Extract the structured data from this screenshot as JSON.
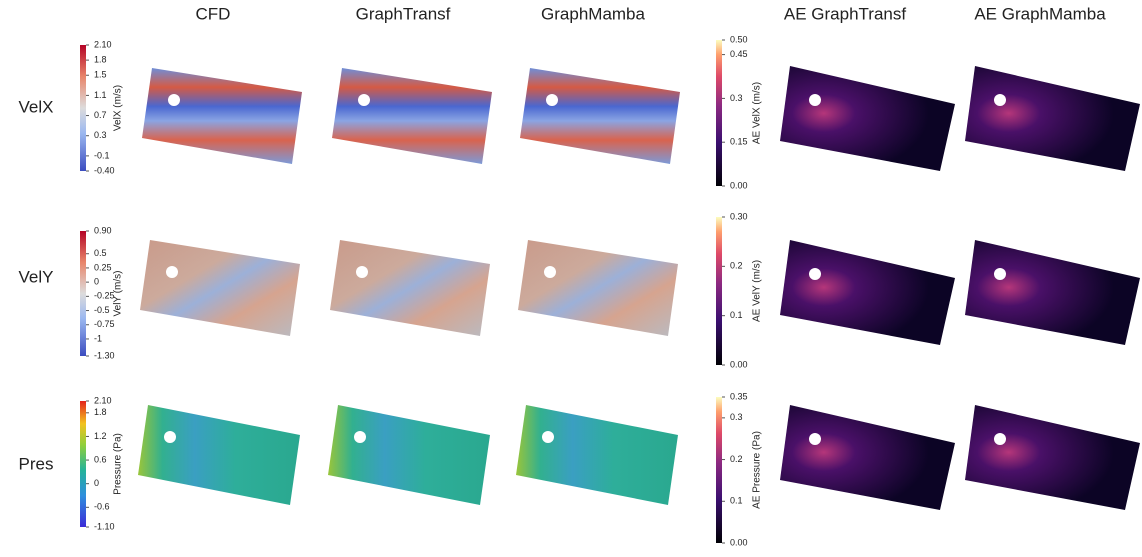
{
  "columns": [
    "CFD",
    "GraphTransf",
    "GraphMamba",
    "AE GraphTransf",
    "AE GraphMamba"
  ],
  "rows": [
    {
      "label": "VelX",
      "colorbar": {
        "label": "VelX (m/s)",
        "lim": [
          -0.4,
          2.1
        ],
        "ticks": [
          {
            "value": 2.1,
            "label": "2.10"
          },
          1.8,
          1.5,
          1.1,
          0.7,
          0.3,
          -0.1,
          {
            "value": -0.4,
            "label": "-0.40"
          }
        ]
      },
      "error_colorbar": {
        "label": "AE VelX (m/s)",
        "lim": [
          0,
          0.5
        ],
        "ticks": [
          {
            "value": 0.5,
            "label": "0.50"
          },
          0.45,
          0.3,
          0.15,
          {
            "value": 0,
            "label": "0.00"
          }
        ]
      }
    },
    {
      "label": "VelY",
      "colorbar": {
        "label": "VelY (m/s)",
        "lim": [
          -1.3,
          0.9
        ],
        "ticks": [
          {
            "value": 0.9,
            "label": "0.90"
          },
          0.5,
          0.25,
          0,
          -0.25,
          -0.5,
          -0.75,
          -1,
          {
            "value": -1.3,
            "label": "-1.30"
          }
        ]
      },
      "error_colorbar": {
        "label": "AE VelY (m/s)",
        "lim": [
          0,
          0.3
        ],
        "ticks": [
          {
            "value": 0.3,
            "label": "0.30"
          },
          0.2,
          0.1,
          {
            "value": 0,
            "label": "0.00"
          }
        ]
      }
    },
    {
      "label": "Pres",
      "colorbar": {
        "label": "Pressure (Pa)",
        "lim": [
          -1.1,
          2.1
        ],
        "ticks": [
          {
            "value": 2.1,
            "label": "2.10"
          },
          1.8,
          1.2,
          0.6,
          0,
          -0.6,
          {
            "value": -1.1,
            "label": "-1.10"
          }
        ]
      },
      "error_colorbar": {
        "label": "AE Pressure (Pa)",
        "lim": [
          0,
          0.35
        ],
        "ticks": [
          0.35,
          0.3,
          0.2,
          0.1,
          {
            "value": 0,
            "label": "0.00"
          }
        ]
      }
    }
  ]
}
